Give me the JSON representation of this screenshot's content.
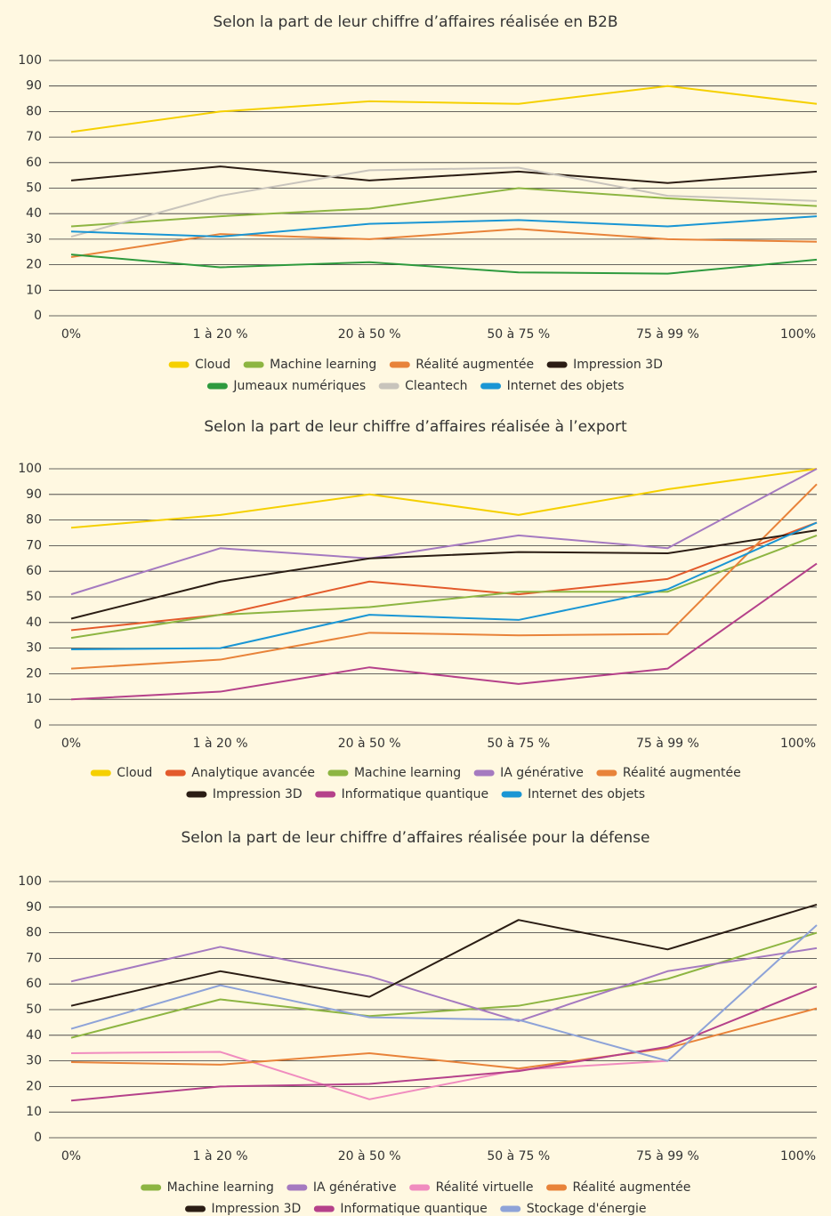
{
  "chart_data": [
    {
      "type": "line",
      "title": "Selon la part de leur chiffre d’affaires réalisée en B2B",
      "categories": [
        "0%",
        "1 à 20 %",
        "20 à 50 %",
        "50 à 75 %",
        "75 à 99 %",
        "100%"
      ],
      "ylim": [
        0,
        100
      ],
      "yticks": [
        0,
        10,
        20,
        30,
        40,
        50,
        60,
        70,
        80,
        90,
        100
      ],
      "grid": true,
      "series": [
        {
          "name": "Cloud",
          "color": "#f5d000",
          "values": [
            72,
            80,
            84,
            83,
            90,
            83
          ]
        },
        {
          "name": "Machine learning",
          "color": "#8db542",
          "values": [
            35,
            39,
            42,
            50,
            46,
            43
          ]
        },
        {
          "name": "Réalité augmentée",
          "color": "#e8833a",
          "values": [
            23,
            32,
            30,
            34,
            30,
            29
          ]
        },
        {
          "name": "Impression 3D",
          "color": "#2b1d14",
          "values": [
            53,
            58.5,
            53,
            56.5,
            52,
            56.5
          ]
        },
        {
          "name": "Jumeaux numériques",
          "color": "#2e9a3e",
          "values": [
            24,
            19,
            21,
            17,
            16.5,
            22
          ]
        },
        {
          "name": "Cleantech",
          "color": "#c8c4bc",
          "values": [
            31,
            47,
            57,
            58,
            47,
            45
          ]
        },
        {
          "name": "Internet des objets",
          "color": "#1a96d4",
          "values": [
            33,
            31,
            36,
            37.5,
            35,
            39
          ]
        }
      ]
    },
    {
      "type": "line",
      "title": "Selon la part de leur chiffre d’affaires réalisée à l’export",
      "categories": [
        "0%",
        "1 à 20 %",
        "20 à 50 %",
        "50 à 75 %",
        "75 à 99 %",
        "100%"
      ],
      "ylim": [
        0,
        100
      ],
      "yticks": [
        0,
        10,
        20,
        30,
        40,
        50,
        60,
        70,
        80,
        90,
        100
      ],
      "grid": true,
      "series": [
        {
          "name": "Cloud",
          "color": "#f5d000",
          "values": [
            77,
            82,
            90,
            82,
            92,
            100
          ]
        },
        {
          "name": "Analytique avancée",
          "color": "#e35a2b",
          "values": [
            37,
            43,
            56,
            51,
            57,
            79
          ]
        },
        {
          "name": "Machine learning",
          "color": "#8db542",
          "values": [
            34,
            43,
            46,
            52,
            52,
            74
          ]
        },
        {
          "name": "IA générative",
          "color": "#a57ac0",
          "values": [
            51,
            69,
            65,
            74,
            69,
            100
          ]
        },
        {
          "name": "Réalité augmentée",
          "color": "#e8833a",
          "values": [
            22,
            25.5,
            36,
            35,
            35.5,
            94
          ]
        },
        {
          "name": "Impression 3D",
          "color": "#2b1d14",
          "values": [
            41.5,
            56,
            65,
            67.5,
            67,
            76
          ]
        },
        {
          "name": "Informatique quantique",
          "color": "#b5418a",
          "values": [
            10,
            13,
            22.5,
            16,
            22,
            63
          ]
        },
        {
          "name": "Internet des objets",
          "color": "#1a96d4",
          "values": [
            29.5,
            30,
            43,
            41,
            53,
            79
          ]
        }
      ]
    },
    {
      "type": "line",
      "title": "Selon la part de leur chiffre d’affaires réalisée pour la défense",
      "categories": [
        "0%",
        "1 à 20 %",
        "20 à 50 %",
        "50 à 75 %",
        "75 à 99 %",
        "100%"
      ],
      "ylim": [
        0,
        100
      ],
      "yticks": [
        0,
        10,
        20,
        30,
        40,
        50,
        60,
        70,
        80,
        90,
        100
      ],
      "grid": true,
      "series": [
        {
          "name": "Machine learning",
          "color": "#8db542",
          "values": [
            39,
            54,
            47.5,
            51.5,
            62,
            80
          ]
        },
        {
          "name": "IA générative",
          "color": "#a57ac0",
          "values": [
            61,
            74.5,
            63,
            45.5,
            65,
            74
          ]
        },
        {
          "name": "Réalité virtuelle",
          "color": "#f08cbf",
          "values": [
            33,
            33.5,
            15,
            26.5,
            30,
            null
          ]
        },
        {
          "name": "Réalité augmentée",
          "color": "#e8833a",
          "values": [
            29.5,
            28.5,
            33,
            27,
            35,
            50.5
          ]
        },
        {
          "name": "Impression 3D",
          "color": "#2b1d14",
          "values": [
            51.5,
            65,
            55,
            85,
            73.5,
            91
          ]
        },
        {
          "name": "Informatique quantique",
          "color": "#b5418a",
          "values": [
            14.5,
            20,
            21,
            26,
            35.5,
            59
          ]
        },
        {
          "name": "Stockage d'énergie",
          "color": "#8ea3d8",
          "values": [
            42.5,
            59.5,
            47,
            46,
            30,
            83
          ]
        }
      ]
    }
  ]
}
